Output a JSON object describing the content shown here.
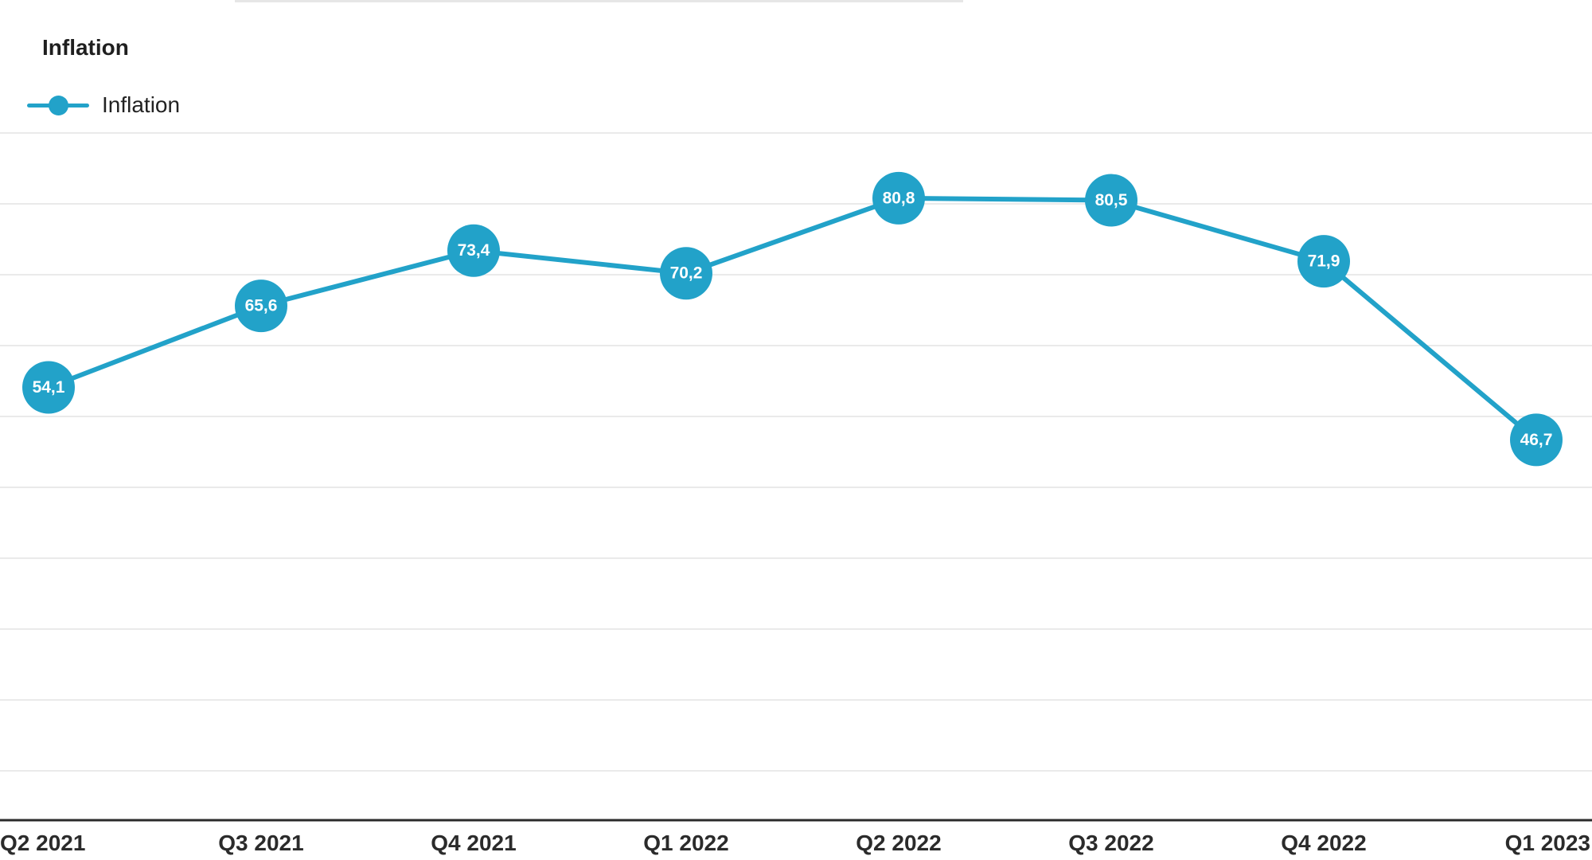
{
  "colors": {
    "series": "#22a2c9",
    "gridline": "#e4e4e4",
    "axis": "#2b2b2b",
    "label_text": "#ffffff"
  },
  "chart_data": {
    "type": "line",
    "title": "Inflation",
    "xlabel": "",
    "ylabel": "",
    "categories": [
      "Q2 2021",
      "Q3 2021",
      "Q4 2021",
      "Q1 2022",
      "Q2 2022",
      "Q3 2022",
      "Q4 2022",
      "Q1 2023"
    ],
    "series": [
      {
        "name": "Inflation",
        "values": [
          54.1,
          65.6,
          73.4,
          70.2,
          80.8,
          80.5,
          71.9,
          46.7
        ],
        "labels": [
          "54,1",
          "65,6",
          "73,4",
          "70,2",
          "80,8",
          "80,5",
          "71,9",
          "46,7"
        ]
      }
    ],
    "ylim": [
      -10,
      100
    ],
    "grid": true,
    "legend": "top-left",
    "data_labels": true,
    "y_tick_labels_visible": false
  }
}
